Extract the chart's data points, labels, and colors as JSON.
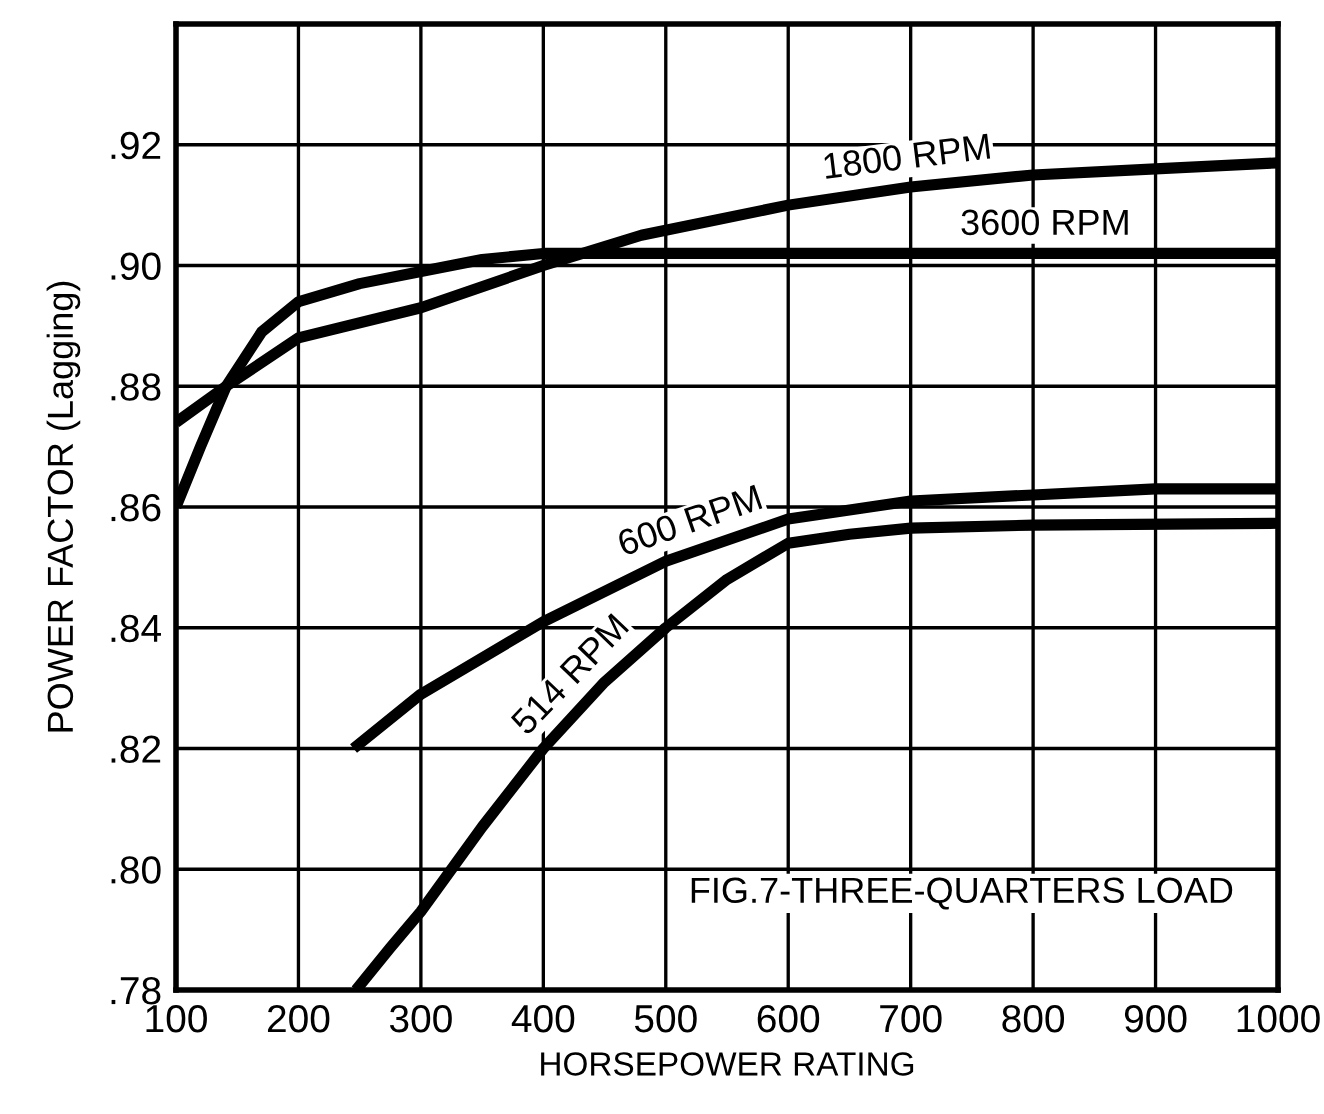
{
  "chart_data": {
    "type": "line",
    "xlabel": "HORSEPOWER RATING",
    "ylabel": "POWER FACTOR (Lagging)",
    "xlim": [
      100,
      1000
    ],
    "xticks": [
      100,
      200,
      300,
      400,
      500,
      600,
      700,
      800,
      900,
      1000
    ],
    "ylim": [
      0.78,
      0.94
    ],
    "yticks": [
      {
        "value": 0.78,
        "label": ".78"
      },
      {
        "value": 0.8,
        "label": ".80"
      },
      {
        "value": 0.82,
        "label": ".82"
      },
      {
        "value": 0.84,
        "label": ".84"
      },
      {
        "value": 0.86,
        "label": ".86"
      },
      {
        "value": 0.88,
        "label": ".88"
      },
      {
        "value": 0.9,
        "label": ".90"
      },
      {
        "value": 0.92,
        "label": ".92"
      },
      {
        "value": 0.94,
        "label": null
      }
    ],
    "grid": true,
    "legend": false,
    "marker": "none",
    "line_style": "solid",
    "series": [
      {
        "name": "1800 RPM",
        "color": "#000000",
        "x": [
          100,
          141,
          200,
          300,
          400,
          480,
          600,
          700,
          800,
          900,
          1000
        ],
        "values": [
          0.874,
          0.88,
          0.888,
          0.893,
          0.9,
          0.905,
          0.91,
          0.913,
          0.915,
          0.916,
          0.917
        ]
      },
      {
        "name": "3600 RPM",
        "color": "#000000",
        "x": [
          100,
          120,
          141,
          170,
          200,
          250,
          300,
          350,
          400,
          500,
          700,
          1000
        ],
        "values": [
          0.86,
          0.87,
          0.88,
          0.889,
          0.894,
          0.897,
          0.899,
          0.901,
          0.902,
          0.902,
          0.902,
          0.902
        ]
      },
      {
        "name": "600 RPM",
        "color": "#000000",
        "x": [
          245,
          300,
          400,
          500,
          600,
          700,
          800,
          900,
          1000
        ],
        "values": [
          0.82,
          0.829,
          0.841,
          0.851,
          0.858,
          0.861,
          0.862,
          0.863,
          0.863
        ]
      },
      {
        "name": "514 RPM",
        "color": "#000000",
        "x": [
          247,
          275,
          300,
          350,
          400,
          450,
          500,
          550,
          600,
          650,
          700,
          800,
          1000
        ],
        "values": [
          0.78,
          0.787,
          0.793,
          0.807,
          0.82,
          0.831,
          0.84,
          0.848,
          0.854,
          0.8555,
          0.8565,
          0.857,
          0.8573
        ]
      }
    ],
    "annotations": [
      "FIG.7-THREE-QUARTERS LOAD"
    ]
  }
}
